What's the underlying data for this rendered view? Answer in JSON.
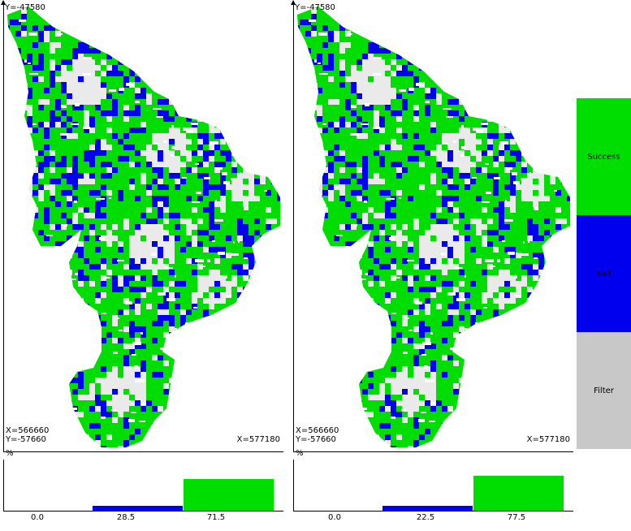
{
  "colors": {
    "success": "#00dd00",
    "fail": "#0000ee",
    "filter": "#c8c8c8",
    "region_fill": "#eaeaea"
  },
  "maps": [
    {
      "top_coord": "Y=-47580",
      "xy_coord_x": "X=566660",
      "xy_coord_y": "Y=-57660",
      "x_max": "X=577180",
      "fail_ratio": 0.285
    },
    {
      "top_coord": "Y=-47580",
      "xy_coord_x": "X=566660",
      "xy_coord_y": "Y=-57660",
      "x_max": "X=577180",
      "fail_ratio": 0.225
    }
  ],
  "histograms": [
    {
      "percent_label": "%",
      "bars": [
        {
          "category": "filter",
          "value": 0.0,
          "label": "0.0"
        },
        {
          "category": "fail",
          "value": 28.5,
          "label": "28.5"
        },
        {
          "category": "success",
          "value": 71.5,
          "label": "71.5"
        }
      ]
    },
    {
      "percent_label": "%",
      "bars": [
        {
          "category": "filter",
          "value": 0.0,
          "label": "0.0"
        },
        {
          "category": "fail",
          "value": 22.5,
          "label": "22.5"
        },
        {
          "category": "success",
          "value": 77.5,
          "label": "77.5"
        }
      ]
    }
  ],
  "legend": [
    {
      "key": "success",
      "label": "Success"
    },
    {
      "key": "fail",
      "label": "Fail"
    },
    {
      "key": "filter",
      "label": "Filter"
    }
  ]
}
